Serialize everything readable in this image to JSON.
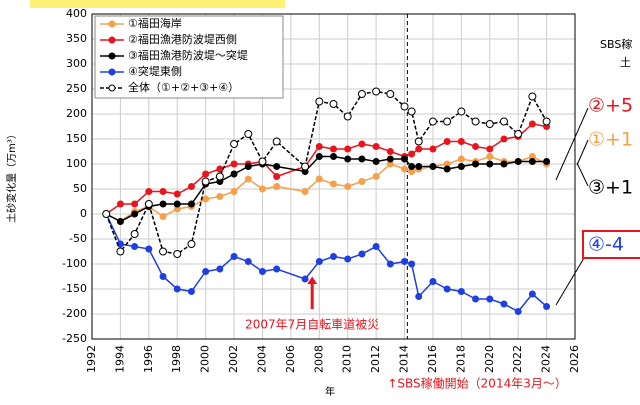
{
  "chart_data": {
    "type": "line",
    "x": [
      1993,
      1994,
      1995,
      1996,
      1997,
      1998,
      1999,
      2000,
      2001,
      2002,
      2003,
      2004,
      2005,
      2007,
      2008,
      2009,
      2010,
      2011,
      2012,
      2013,
      2014,
      2014.5,
      2015,
      2016,
      2017,
      2018,
      2019,
      2020,
      2021,
      2022,
      2023,
      2024
    ],
    "series": [
      {
        "name": "①福田海岸",
        "color": "#f5a04a",
        "values": [
          0,
          -15,
          5,
          15,
          -5,
          10,
          15,
          30,
          35,
          45,
          70,
          50,
          55,
          45,
          70,
          60,
          55,
          65,
          75,
          100,
          90,
          85,
          90,
          95,
          100,
          110,
          105,
          115,
          105,
          105,
          115,
          100
        ]
      },
      {
        "name": "②福田漁港防波堤西側",
        "color": "#e8141e",
        "values": [
          0,
          20,
          20,
          45,
          45,
          40,
          55,
          80,
          90,
          100,
          100,
          105,
          75,
          95,
          135,
          130,
          130,
          140,
          135,
          125,
          115,
          120,
          130,
          130,
          145,
          145,
          135,
          130,
          150,
          155,
          180,
          175
        ]
      },
      {
        "name": "③福田漁港防波堤～突堤",
        "color": "#000000",
        "values": [
          0,
          -15,
          0,
          15,
          20,
          20,
          20,
          60,
          65,
          80,
          95,
          100,
          95,
          85,
          115,
          115,
          110,
          110,
          105,
          110,
          110,
          95,
          95,
          95,
          90,
          95,
          100,
          100,
          100,
          105,
          105,
          105
        ]
      },
      {
        "name": "④突堤東側",
        "color": "#1f3fe0",
        "values": [
          0,
          -60,
          -65,
          -70,
          -125,
          -150,
          -155,
          -115,
          -110,
          -85,
          -95,
          -115,
          -110,
          -130,
          -95,
          -85,
          -90,
          -80,
          -65,
          -100,
          -95,
          -100,
          -165,
          -135,
          -150,
          -155,
          -170,
          -170,
          -180,
          -195,
          -160,
          -185
        ]
      },
      {
        "name": "全体（①+②+③+④）",
        "color": "#000000",
        "dashed": true,
        "open_marker": true,
        "values": [
          0,
          -75,
          -40,
          20,
          -75,
          -80,
          -60,
          65,
          75,
          140,
          160,
          105,
          145,
          95,
          225,
          220,
          195,
          240,
          245,
          240,
          215,
          205,
          145,
          185,
          185,
          205,
          185,
          180,
          185,
          160,
          235,
          185
        ]
      }
    ],
    "xlabel": "年",
    "ylabel": "土砂変化量（万m³）",
    "xlim": [
      1992,
      2026
    ],
    "xticks": [
      1992,
      1994,
      1996,
      1998,
      2000,
      2002,
      2004,
      2006,
      2008,
      2010,
      2012,
      2014,
      2016,
      2018,
      2020,
      2022,
      2024,
      2026
    ],
    "ylim": [
      -250,
      400
    ],
    "yticks": [
      -250,
      -200,
      -150,
      -100,
      -50,
      0,
      50,
      100,
      150,
      200,
      250,
      300,
      350,
      400
    ],
    "grid": true,
    "annotations": {
      "event": "2007年7月自転車道被災",
      "event_x": 2007.5,
      "sbs": "↑SBS稼働開始（2014年3月～）",
      "sbs_x": 2014.2,
      "right": [
        "SBS稼",
        "土",
        "②+5",
        "①+1",
        "③+1",
        "④-4"
      ]
    }
  }
}
